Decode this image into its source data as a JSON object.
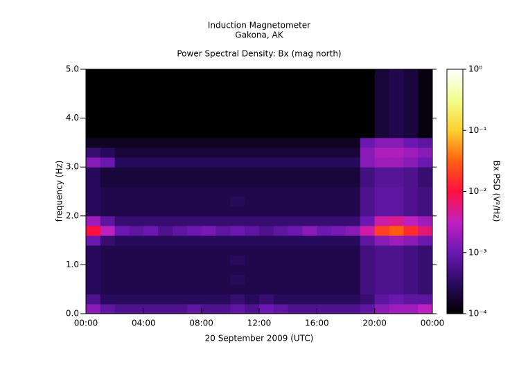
{
  "chart_data": {
    "type": "heatmap",
    "title": "Induction Magnetometer",
    "subtitle": "Gakona, AK",
    "plot_title": "Power Spectral Density: Bx (mag north)",
    "x_label": "20 September 2009 (UTC)",
    "y_label": "frequency (Hz)",
    "colorbar_label": "Bx PSD (V²/Hz)",
    "xlim": [
      0,
      24
    ],
    "xticks": [
      {
        "value": 0,
        "label": "00:00"
      },
      {
        "value": 4,
        "label": "04:00"
      },
      {
        "value": 8,
        "label": "08:00"
      },
      {
        "value": 12,
        "label": "12:00"
      },
      {
        "value": 16,
        "label": "16:00"
      },
      {
        "value": 20,
        "label": "20:00"
      },
      {
        "value": 24,
        "label": "00:00"
      }
    ],
    "ylim": [
      0,
      5
    ],
    "yticks": [
      {
        "value": 0,
        "label": "0.0"
      },
      {
        "value": 1,
        "label": "1.0"
      },
      {
        "value": 2,
        "label": "2.0"
      },
      {
        "value": 3,
        "label": "3.0"
      },
      {
        "value": 4,
        "label": "4.0"
      },
      {
        "value": 5,
        "label": "5.0"
      }
    ],
    "zscale": "log",
    "zlim": [
      0.0001,
      1
    ],
    "zticks": [
      {
        "value": 0.0001,
        "label": "10⁻⁴"
      },
      {
        "value": 0.001,
        "label": "10⁻³"
      },
      {
        "value": 0.01,
        "label": "10⁻²"
      },
      {
        "value": 0.1,
        "label": "10⁻¹"
      },
      {
        "value": 1,
        "label": "10⁰"
      }
    ],
    "colormap": [
      "#000000",
      "#2a0a60",
      "#6a18b0",
      "#c020c0",
      "#ff1040",
      "#ff6010",
      "#ffd030",
      "#f0ff90",
      "#ffffff"
    ],
    "x": [
      0.5,
      1.5,
      2.5,
      3.5,
      4.5,
      5.5,
      6.5,
      7.5,
      8.5,
      9.5,
      10.5,
      11.5,
      12.5,
      13.5,
      14.5,
      15.5,
      16.5,
      17.5,
      18.5,
      19.5,
      20.5,
      21.5,
      22.5,
      23.5
    ],
    "y": [
      0.1,
      0.3,
      0.5,
      0.7,
      0.9,
      1.1,
      1.3,
      1.5,
      1.7,
      1.9,
      2.1,
      2.3,
      2.5,
      2.7,
      2.9,
      3.1,
      3.3,
      3.5,
      3.7,
      3.9,
      4.1,
      4.3,
      4.5,
      4.7,
      4.9
    ],
    "z": [
      [
        0.0015,
        0.0008,
        0.0006,
        0.0006,
        0.0006,
        0.0006,
        0.0006,
        0.0008,
        0.0006,
        0.0006,
        0.0008,
        0.0006,
        0.001,
        0.0008,
        0.0006,
        0.0006,
        0.0006,
        0.0006,
        0.0006,
        0.0008,
        0.0015,
        0.002,
        0.002,
        0.003
      ],
      [
        0.0006,
        0.0003,
        0.0003,
        0.0003,
        0.0003,
        0.0003,
        0.0003,
        0.0003,
        0.0003,
        0.0003,
        0.0004,
        0.0003,
        0.0004,
        0.0003,
        0.0003,
        0.0003,
        0.0003,
        0.0003,
        0.0003,
        0.0004,
        0.0008,
        0.001,
        0.0008,
        0.0008
      ],
      [
        0.0003,
        0.00025,
        0.00025,
        0.00025,
        0.00025,
        0.00025,
        0.00025,
        0.00025,
        0.00025,
        0.00025,
        0.00025,
        0.00025,
        0.00025,
        0.00025,
        0.00025,
        0.00025,
        0.00025,
        0.00025,
        0.00025,
        0.0005,
        0.0006,
        0.0006,
        0.0005,
        0.0004
      ],
      [
        0.0003,
        0.00025,
        0.00025,
        0.00025,
        0.00025,
        0.00025,
        0.00025,
        0.00025,
        0.00025,
        0.00025,
        0.0003,
        0.00025,
        0.00025,
        0.00025,
        0.00025,
        0.00025,
        0.00025,
        0.00025,
        0.00025,
        0.0005,
        0.0006,
        0.0006,
        0.0005,
        0.0004
      ],
      [
        0.0003,
        0.00025,
        0.00025,
        0.00025,
        0.00025,
        0.00025,
        0.00025,
        0.00025,
        0.00025,
        0.00025,
        0.00025,
        0.00025,
        0.00025,
        0.00025,
        0.00025,
        0.00025,
        0.00025,
        0.00025,
        0.00025,
        0.0005,
        0.0006,
        0.0006,
        0.0005,
        0.0004
      ],
      [
        0.0003,
        0.00025,
        0.00025,
        0.00025,
        0.00025,
        0.00025,
        0.00025,
        0.00025,
        0.00025,
        0.00025,
        0.0003,
        0.00025,
        0.00025,
        0.00025,
        0.00025,
        0.00025,
        0.00025,
        0.00025,
        0.00025,
        0.0005,
        0.0006,
        0.0006,
        0.0005,
        0.0004
      ],
      [
        0.0003,
        0.00025,
        0.00025,
        0.00025,
        0.00025,
        0.00025,
        0.00025,
        0.00025,
        0.00025,
        0.00025,
        0.00025,
        0.00025,
        0.00025,
        0.00025,
        0.00025,
        0.00025,
        0.00025,
        0.00025,
        0.00025,
        0.0005,
        0.0006,
        0.0006,
        0.0005,
        0.0004
      ],
      [
        0.001,
        0.0004,
        0.0003,
        0.0003,
        0.0003,
        0.0003,
        0.0003,
        0.0003,
        0.0003,
        0.0003,
        0.0003,
        0.0003,
        0.0003,
        0.0003,
        0.0003,
        0.0003,
        0.0003,
        0.0003,
        0.0003,
        0.0008,
        0.0015,
        0.002,
        0.0015,
        0.001
      ],
      [
        0.01,
        0.003,
        0.001,
        0.0008,
        0.001,
        0.0006,
        0.0008,
        0.001,
        0.0012,
        0.0008,
        0.001,
        0.0008,
        0.0006,
        0.0008,
        0.001,
        0.0015,
        0.001,
        0.0012,
        0.0015,
        0.004,
        0.02,
        0.03,
        0.015,
        0.006
      ],
      [
        0.002,
        0.0008,
        0.0004,
        0.0004,
        0.0004,
        0.0004,
        0.0004,
        0.0004,
        0.0004,
        0.0004,
        0.0004,
        0.0004,
        0.0004,
        0.0004,
        0.0004,
        0.0004,
        0.0004,
        0.0004,
        0.0004,
        0.001,
        0.004,
        0.005,
        0.003,
        0.002
      ],
      [
        0.0003,
        0.00025,
        0.00025,
        0.00025,
        0.00025,
        0.00025,
        0.00025,
        0.00025,
        0.00025,
        0.00025,
        0.00025,
        0.00025,
        0.00025,
        0.00025,
        0.00025,
        0.00025,
        0.00025,
        0.00025,
        0.00025,
        0.0006,
        0.0008,
        0.0008,
        0.0006,
        0.0005
      ],
      [
        0.0003,
        0.00025,
        0.00025,
        0.00025,
        0.00025,
        0.00025,
        0.00025,
        0.00025,
        0.00025,
        0.00025,
        0.0003,
        0.00025,
        0.00025,
        0.00025,
        0.00025,
        0.00025,
        0.00025,
        0.00025,
        0.00025,
        0.0006,
        0.0008,
        0.0008,
        0.0006,
        0.0005
      ],
      [
        0.0003,
        0.00025,
        0.00025,
        0.00025,
        0.00025,
        0.00025,
        0.00025,
        0.00025,
        0.00025,
        0.00025,
        0.00025,
        0.00025,
        0.00025,
        0.00025,
        0.00025,
        0.00025,
        0.00025,
        0.00025,
        0.00025,
        0.0006,
        0.0008,
        0.0008,
        0.0006,
        0.0005
      ],
      [
        0.0003,
        0.0002,
        0.0002,
        0.0002,
        0.0002,
        0.0002,
        0.0002,
        0.0002,
        0.0002,
        0.0002,
        0.0002,
        0.0002,
        0.0002,
        0.0002,
        0.0002,
        0.0002,
        0.0002,
        0.0002,
        0.0002,
        0.0005,
        0.0007,
        0.0007,
        0.0006,
        0.0004
      ],
      [
        0.0003,
        0.0002,
        0.0002,
        0.0002,
        0.0002,
        0.0002,
        0.0002,
        0.0002,
        0.0002,
        0.0002,
        0.0002,
        0.0002,
        0.0002,
        0.0002,
        0.0002,
        0.0002,
        0.0002,
        0.0002,
        0.0002,
        0.0005,
        0.0007,
        0.0007,
        0.0006,
        0.0004
      ],
      [
        0.0015,
        0.001,
        0.0003,
        0.0003,
        0.0003,
        0.0003,
        0.0003,
        0.0003,
        0.0003,
        0.0003,
        0.0003,
        0.0003,
        0.0003,
        0.0003,
        0.0003,
        0.0003,
        0.0003,
        0.0003,
        0.0003,
        0.0015,
        0.002,
        0.002,
        0.0015,
        0.001
      ],
      [
        0.0004,
        0.0003,
        0.0002,
        0.0002,
        0.0002,
        0.0002,
        0.0002,
        0.0002,
        0.0002,
        0.0002,
        0.0002,
        0.0002,
        0.0002,
        0.0002,
        0.0002,
        0.0002,
        0.0002,
        0.0002,
        0.0002,
        0.0015,
        0.0025,
        0.0025,
        0.002,
        0.0015
      ],
      [
        0.00015,
        0.00015,
        0.00015,
        0.00015,
        0.00015,
        0.00015,
        0.00015,
        0.00015,
        0.00015,
        0.00015,
        0.00015,
        0.00015,
        0.00015,
        0.00015,
        0.00015,
        0.00015,
        0.00015,
        0.00015,
        0.00015,
        0.001,
        0.0015,
        0.0015,
        0.001,
        0.0008
      ],
      [
        0.0001,
        0.0001,
        0.0001,
        0.0001,
        0.0001,
        0.0001,
        0.0001,
        0.0001,
        0.0001,
        0.0001,
        0.0001,
        0.0001,
        0.0001,
        0.0001,
        0.0001,
        0.0001,
        0.0001,
        0.0001,
        0.0001,
        0.0001,
        0.0002,
        0.00025,
        0.0002,
        0.00012
      ],
      [
        0.0001,
        0.0001,
        0.0001,
        0.0001,
        0.0001,
        0.0001,
        0.0001,
        0.0001,
        0.0001,
        0.0001,
        0.0001,
        0.0001,
        0.0001,
        0.0001,
        0.0001,
        0.0001,
        0.0001,
        0.0001,
        0.0001,
        0.0001,
        0.0002,
        0.00025,
        0.0002,
        0.00012
      ],
      [
        0.0001,
        0.0001,
        0.0001,
        0.0001,
        0.0001,
        0.0001,
        0.0001,
        0.0001,
        0.0001,
        0.0001,
        0.0001,
        0.0001,
        0.0001,
        0.0001,
        0.0001,
        0.0001,
        0.0001,
        0.0001,
        0.0001,
        0.0001,
        0.0002,
        0.00025,
        0.0002,
        0.00012
      ],
      [
        0.0001,
        0.0001,
        0.0001,
        0.0001,
        0.0001,
        0.0001,
        0.0001,
        0.0001,
        0.0001,
        0.0001,
        0.0001,
        0.0001,
        0.0001,
        0.0001,
        0.0001,
        0.0001,
        0.0001,
        0.0001,
        0.0001,
        0.0001,
        0.0002,
        0.00025,
        0.0002,
        0.00012
      ],
      [
        0.0001,
        0.0001,
        0.0001,
        0.0001,
        0.0001,
        0.0001,
        0.0001,
        0.0001,
        0.0001,
        0.0001,
        0.0001,
        0.0001,
        0.0001,
        0.0001,
        0.0001,
        0.0001,
        0.0001,
        0.0001,
        0.0001,
        0.0001,
        0.0002,
        0.00025,
        0.0002,
        0.00012
      ],
      [
        0.0001,
        0.0001,
        0.0001,
        0.0001,
        0.0001,
        0.0001,
        0.0001,
        0.0001,
        0.0001,
        0.0001,
        0.0001,
        0.0001,
        0.0001,
        0.0001,
        0.0001,
        0.0001,
        0.0001,
        0.0001,
        0.0001,
        0.0001,
        0.0002,
        0.00025,
        0.0002,
        0.00012
      ],
      [
        0.0001,
        0.0001,
        0.0001,
        0.0001,
        0.0001,
        0.0001,
        0.0001,
        0.0001,
        0.0001,
        0.0001,
        0.0001,
        0.0001,
        0.0001,
        0.0001,
        0.0001,
        0.0001,
        0.0001,
        0.0001,
        0.0001,
        0.0001,
        0.0002,
        0.00025,
        0.0002,
        0.00012
      ]
    ]
  }
}
